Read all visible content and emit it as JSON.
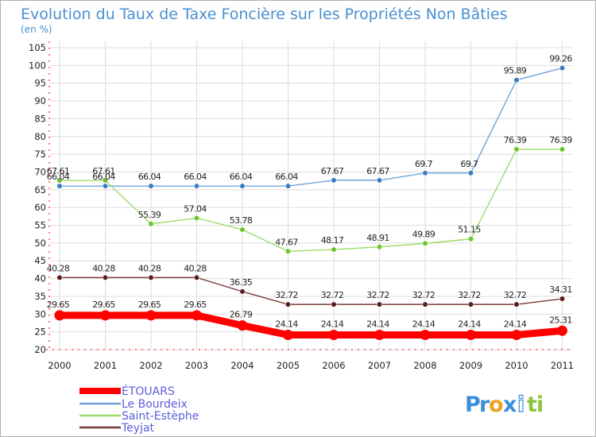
{
  "chart_data": {
    "type": "line",
    "title": "Evolution du Taux de Taxe Foncière sur les Propriétés Non Bâties",
    "subtitle": "(en %)",
    "xlabel": "",
    "ylabel": "",
    "x": [
      "2000",
      "2001",
      "2002",
      "2003",
      "2004",
      "2005",
      "2006",
      "2007",
      "2008",
      "2009",
      "2010",
      "2011"
    ],
    "ylim": [
      20,
      105
    ],
    "yticks": [
      20,
      25,
      30,
      35,
      40,
      45,
      50,
      55,
      60,
      65,
      70,
      75,
      80,
      85,
      90,
      95,
      100,
      105
    ],
    "grid": true,
    "legend_position": "bottom-left",
    "series": [
      {
        "name": "ÉTOUARS",
        "color": "#ff0000",
        "values": [
          29.65,
          29.65,
          29.65,
          29.65,
          26.79,
          24.14,
          24.14,
          24.14,
          24.14,
          24.14,
          24.14,
          25.31
        ],
        "labels": [
          "29.65",
          "29.65",
          "29.65",
          "29.65",
          "26.79",
          "24.14",
          "24.14",
          "24.14",
          "24.14",
          "24.14",
          "24.14",
          "25.31"
        ]
      },
      {
        "name": "Le Bourdeix",
        "color": "#6fa3d8",
        "marker_color": "#3a7cc4",
        "values": [
          66.04,
          66.04,
          66.04,
          66.04,
          66.04,
          66.04,
          67.67,
          67.67,
          69.7,
          69.7,
          95.89,
          99.26
        ],
        "labels": [
          "66.04",
          "66.04",
          "66.04",
          "66.04",
          "66.04",
          "66.04",
          "67.67",
          "67.67",
          "69.7",
          "69.7",
          "95.89",
          "99.26"
        ]
      },
      {
        "name": "Saint-Estèphe",
        "color": "#9bdc6a",
        "marker_color": "#6cc42e",
        "values": [
          67.61,
          67.61,
          55.39,
          57.04,
          53.78,
          47.67,
          48.17,
          48.91,
          49.89,
          51.15,
          76.39,
          76.39
        ],
        "labels": [
          "67.61",
          "67.61",
          "55.39",
          "57.04",
          "53.78",
          "47.67",
          "48.17",
          "48.91",
          "49.89",
          "51.15",
          "76.39",
          "76.39"
        ]
      },
      {
        "name": "Teyjat",
        "color": "#7a3a3a",
        "marker_color": "#5a1e1e",
        "values": [
          40.28,
          40.28,
          40.28,
          40.28,
          36.35,
          32.72,
          32.72,
          32.72,
          32.72,
          32.72,
          32.72,
          34.31
        ],
        "labels": [
          "40.28",
          "40.28",
          "40.28",
          "40.28",
          "36.35",
          "32.72",
          "32.72",
          "32.72",
          "32.72",
          "32.72",
          "32.72",
          "34.31"
        ]
      }
    ]
  },
  "logo": {
    "letters": [
      "P",
      "r",
      "o",
      "x",
      "i",
      "t",
      "i"
    ],
    "colors": [
      "#3b8fd9",
      "#3b8fd9",
      "#f0a020",
      "#3b8fd9",
      "#ffffff",
      "#8cc63e",
      "#8cc63e"
    ]
  }
}
